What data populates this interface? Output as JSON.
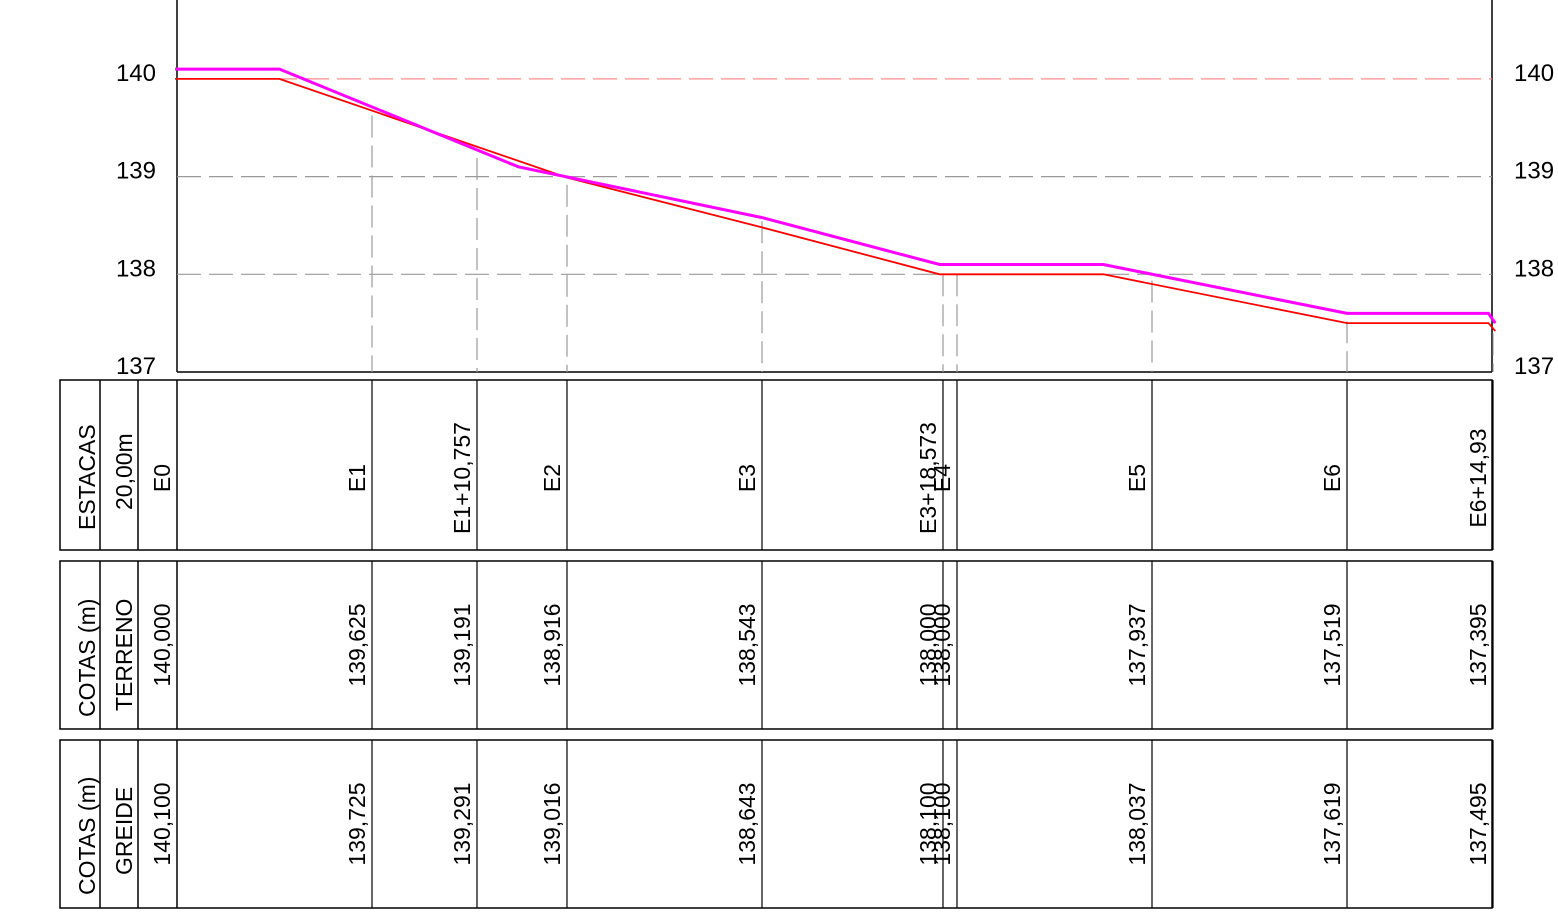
{
  "axis": {
    "ticks": [
      140,
      139,
      138,
      137
    ],
    "range": [
      137,
      140.7
    ]
  },
  "tables": {
    "estacas": {
      "label1": "ESTACAS",
      "label2": "20,00m"
    },
    "terreno": {
      "label1": "COTAS (m)",
      "label2": "TERRENO"
    },
    "greide": {
      "label1": "COTAS (m)",
      "label2": "GREIDE"
    }
  },
  "stations": [
    {
      "name": "E0",
      "dist": 0,
      "terreno": "140,000",
      "greide": "140,100"
    },
    {
      "name": "E1",
      "dist": 20,
      "terreno": "139,625",
      "greide": "139,725"
    },
    {
      "name": "E1+10,757",
      "dist": 30.757,
      "terreno": "139,191",
      "greide": "139,291"
    },
    {
      "name": "E2",
      "dist": 40,
      "terreno": "138,916",
      "greide": "139,016"
    },
    {
      "name": "E3",
      "dist": 60,
      "terreno": "138,543",
      "greide": "138,643"
    },
    {
      "name": "E3+18,573",
      "dist": 78.573,
      "terreno": "138,000",
      "greide": "138,100"
    },
    {
      "name": "E4",
      "dist": 80,
      "terreno": "138,000",
      "greide": "138,100"
    },
    {
      "name": "E5",
      "dist": 100,
      "terreno": "137,937",
      "greide": "138,037"
    },
    {
      "name": "E6",
      "dist": 120,
      "terreno": "137,519",
      "greide": "137,619"
    },
    {
      "name": "E6+14,93",
      "dist": 134.93,
      "terreno": "137,395",
      "greide": "137,495"
    }
  ],
  "chart_data": {
    "type": "line",
    "ylim": [
      137,
      140.7
    ],
    "series": [
      {
        "x": [
          -0.2,
          10.5,
          40,
          60,
          78.2,
          80,
          95,
          120,
          134.5,
          135.2
        ],
        "values": [
          140.0,
          140.0,
          138.99,
          138.48,
          138.0,
          138.0,
          138.0,
          137.5,
          137.5,
          137.42
        ]
      },
      {
        "x": [
          -0.2,
          10.5,
          35,
          60,
          78.2,
          80,
          95,
          120,
          134.5,
          135.2
        ],
        "values": [
          140.1,
          140.1,
          139.1,
          138.58,
          138.1,
          138.1,
          138.1,
          137.6,
          137.6,
          137.5
        ]
      }
    ],
    "colors": {
      "terreno": "#ff0000",
      "greide": "#ff00ff",
      "grid": "#999999",
      "grid_top": "#ff8a8a"
    }
  }
}
